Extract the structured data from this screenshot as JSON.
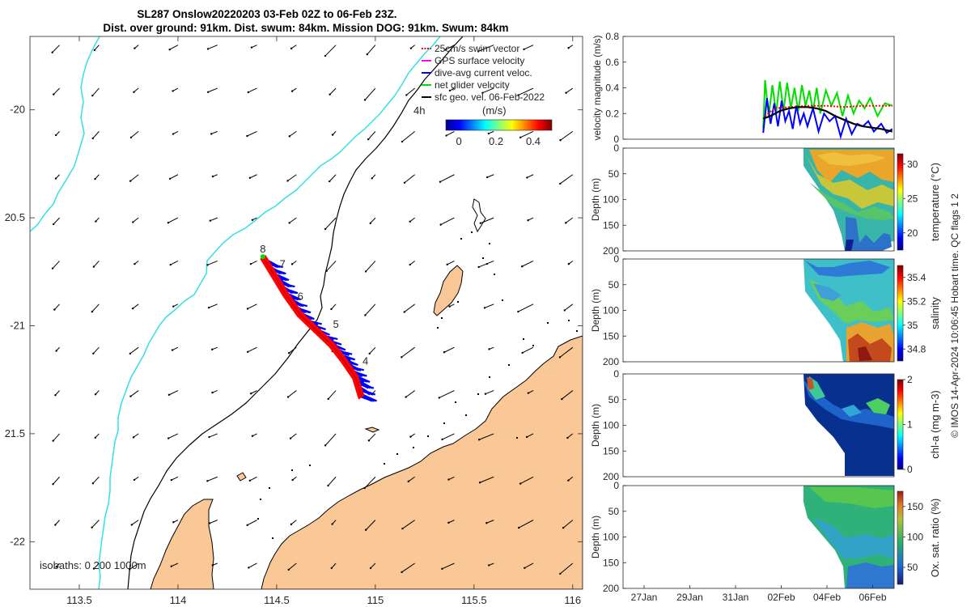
{
  "title": {
    "line1": "SL287 Onslow20220203 03-Feb 02Z to 06-Feb 23Z.",
    "line2": "Dist. over ground: 91km. Dist. swum: 84km. Mission DOG: 91km. Swum: 84km"
  },
  "credit": "© IMOS 14-Apr-2024 10:06:45 Hobart time. QC flags 1 2",
  "colors": {
    "land": "#f9c896",
    "coast": "#000000",
    "isobath_shallow": "#000000",
    "isobath_deep": "#33e0e6",
    "glider_track": "#ff0000",
    "dive_avg": "#0000ff",
    "net_velocity": "#00e000",
    "swim_vector": "#ff0000",
    "gps_velocity": "#ff00ff"
  },
  "chart_data": [
    {
      "type": "map",
      "xlim": [
        113.25,
        116.05
      ],
      "ylim": [
        -22.22,
        -19.66
      ],
      "x_ticks": [
        {
          "value": 113.5,
          "label": "113.5"
        },
        {
          "value": 114,
          "label": "114"
        },
        {
          "value": 114.5,
          "label": "114.5"
        },
        {
          "value": 115,
          "label": "115"
        },
        {
          "value": 115.5,
          "label": "115.5"
        },
        {
          "value": 116,
          "label": "116"
        }
      ],
      "y_ticks": [
        {
          "value": -20,
          "label": "-20"
        },
        {
          "value": -20.5,
          "label": "20.5"
        },
        {
          "value": -21,
          "label": "-21"
        },
        {
          "value": -21.5,
          "label": "21.5"
        },
        {
          "value": -22,
          "label": "-22"
        }
      ],
      "legend": {
        "placement": "top-right",
        "entries": [
          {
            "label": "25cm/s swim vector",
            "color": "#ff0000"
          },
          {
            "label": "GPS surface velocity",
            "color": "#ff00ff"
          },
          {
            "label": "dive-avg current veloc.",
            "color": "#0000ff"
          },
          {
            "label": "net glider velocity",
            "color": "#00e000"
          },
          {
            "label": "sfc geo. vel. 06-Feb-2022",
            "color": "#000000"
          }
        ]
      },
      "colorbar": {
        "label": "(m/s)",
        "min": -0.07,
        "max": 0.5,
        "ticks": [
          {
            "value": 0,
            "label": "0"
          },
          {
            "value": 0.2,
            "label": "0.2"
          },
          {
            "value": 0.4,
            "label": "0.4"
          }
        ]
      },
      "isobath_note": "isobaths: 0   200  1000m",
      "isobath_200m_label": "4h",
      "track": [
        [
          114.93,
          -21.33
        ],
        [
          114.9,
          -21.24
        ],
        [
          114.84,
          -21.16
        ],
        [
          114.78,
          -21.09
        ],
        [
          114.7,
          -21.02
        ],
        [
          114.62,
          -20.95
        ],
        [
          114.55,
          -20.86
        ],
        [
          114.49,
          -20.77
        ],
        [
          114.43,
          -20.68
        ]
      ],
      "track_labels": [
        {
          "text": "8",
          "lon": 114.43,
          "lat": -20.66
        },
        {
          "text": "7",
          "lon": 114.53,
          "lat": -20.73
        },
        {
          "text": "6",
          "lon": 114.62,
          "lat": -20.88
        },
        {
          "text": "5",
          "lon": 114.8,
          "lat": -21.01
        },
        {
          "text": "4",
          "lon": 114.95,
          "lat": -21.18
        }
      ],
      "vector_field": {
        "lon_start": 113.4,
        "lon_step": 0.2,
        "lat_start": -19.7,
        "lat_step": -0.2,
        "direction": "southwest",
        "speed_range": [
          0.03,
          0.18
        ]
      }
    },
    {
      "type": "line",
      "ylabel": "velocity magnitude (m/s)",
      "ylim": [
        0,
        0.8
      ],
      "y_ticks": [
        0,
        0.2,
        0.4,
        0.6,
        0.8
      ],
      "x_range_days": [
        -7,
        7.7
      ],
      "series": [
        {
          "name": "net glider velocity",
          "color": "#00e000",
          "x": [
            0.6,
            0.7,
            0.9,
            1.1,
            1.3,
            1.5,
            1.7,
            1.9,
            2.1,
            2.3,
            2.5,
            2.7,
            2.9,
            3.1,
            3.3,
            3.5,
            3.7,
            4.0,
            4.3,
            4.6,
            4.9,
            5.2,
            5.5,
            5.8,
            6.1,
            6.4,
            6.8,
            7.2,
            7.6
          ],
          "y": [
            0.08,
            0.46,
            0.18,
            0.42,
            0.2,
            0.45,
            0.22,
            0.44,
            0.24,
            0.4,
            0.22,
            0.42,
            0.26,
            0.38,
            0.22,
            0.4,
            0.2,
            0.38,
            0.26,
            0.36,
            0.18,
            0.34,
            0.2,
            0.3,
            0.24,
            0.32,
            0.18,
            0.28,
            0.26
          ]
        },
        {
          "name": "dive-avg current veloc.",
          "color": "#0000ff",
          "x": [
            0.6,
            0.8,
            1.0,
            1.2,
            1.4,
            1.6,
            1.8,
            2.0,
            2.2,
            2.4,
            2.6,
            2.8,
            3.0,
            3.3,
            3.6,
            3.9,
            4.2,
            4.5,
            4.8,
            5.1,
            5.4,
            5.7,
            6.0,
            6.3,
            6.6,
            7.0,
            7.3,
            7.6
          ],
          "y": [
            0.05,
            0.32,
            0.12,
            0.28,
            0.1,
            0.3,
            0.14,
            0.22,
            0.08,
            0.26,
            0.12,
            0.2,
            0.1,
            0.24,
            0.06,
            0.2,
            0.14,
            0.18,
            0.02,
            0.16,
            0.04,
            0.12,
            0.1,
            0.14,
            0.06,
            0.12,
            0.05,
            0.08
          ]
        },
        {
          "name": "swim vector",
          "color": "#ff0000",
          "x": [
            0.7,
            1.2,
            2.0,
            3.0,
            4.0,
            5.0,
            6.0,
            7.0,
            7.6
          ],
          "y": [
            0.18,
            0.24,
            0.25,
            0.26,
            0.26,
            0.25,
            0.26,
            0.26,
            0.26
          ]
        },
        {
          "name": "sfc geo. vel.",
          "color": "#000000",
          "x": [
            0.6,
            1.0,
            1.5,
            2.0,
            2.5,
            3.0,
            3.5,
            4.0,
            4.5,
            5.0,
            5.5,
            6.0,
            6.5,
            7.0,
            7.6
          ],
          "y": [
            0.16,
            0.18,
            0.22,
            0.24,
            0.25,
            0.25,
            0.24,
            0.22,
            0.18,
            0.15,
            0.12,
            0.1,
            0.09,
            0.08,
            0.06
          ]
        }
      ]
    },
    {
      "type": "heatmap",
      "ylabel": "Depth (m)",
      "ylim": [
        200,
        0
      ],
      "y_ticks": [
        0,
        50,
        100,
        150,
        200
      ],
      "colorbar_label": "temperature (°C)",
      "colorbar_range": [
        17.5,
        31.5
      ],
      "colorbar_ticks": [
        20,
        25,
        30
      ]
    },
    {
      "type": "heatmap",
      "ylabel": "Depth (m)",
      "ylim": [
        200,
        0
      ],
      "y_ticks": [
        0,
        50,
        100,
        150,
        200
      ],
      "colorbar_label": "salinity",
      "colorbar_range": [
        34.7,
        35.5
      ],
      "colorbar_ticks": [
        34.8,
        35,
        35.2,
        35.4
      ]
    },
    {
      "type": "heatmap",
      "ylabel": "Depth (m)",
      "ylim": [
        200,
        0
      ],
      "y_ticks": [
        0,
        50,
        100,
        150,
        200
      ],
      "colorbar_label": "chl-a (mg m-3)",
      "colorbar_range": [
        0,
        2
      ],
      "colorbar_ticks": [
        0,
        1,
        2
      ]
    },
    {
      "type": "heatmap",
      "ylabel": "Depth (m)",
      "ylim": [
        200,
        0
      ],
      "y_ticks": [
        0,
        50,
        100,
        150,
        200
      ],
      "colorbar_label": "Ox. sat. ratio (%)",
      "colorbar_range": [
        22,
        175
      ],
      "colorbar_ticks": [
        50,
        100,
        150
      ],
      "x_ticks": [
        "27Jan",
        "29Jan",
        "31Jan",
        "02Feb",
        "04Feb",
        "06Feb"
      ]
    }
  ]
}
